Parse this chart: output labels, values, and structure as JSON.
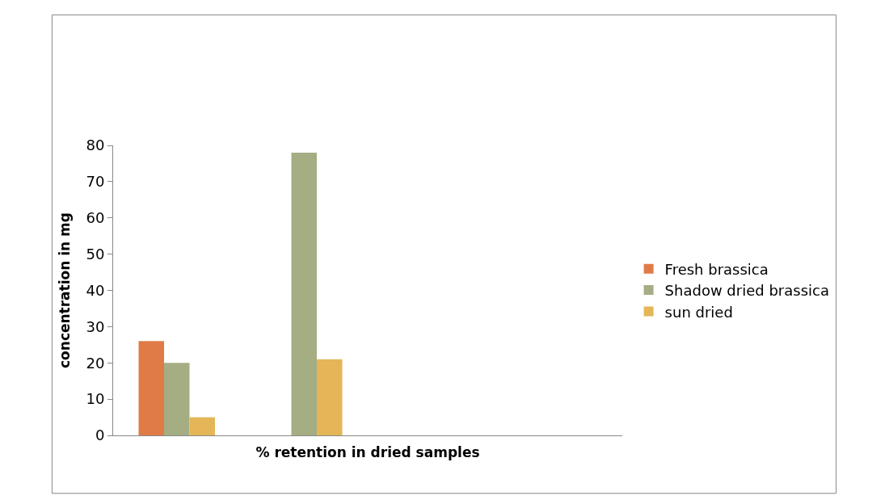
{
  "chart_data": {
    "type": "bar",
    "xlabel": "% retention in dried samples",
    "ylabel": "concentration in mg",
    "categories": [
      null,
      null,
      null,
      null
    ],
    "series": [
      {
        "name": "Fresh brassica",
        "color": "#e07b48",
        "values": [
          26,
          null,
          null,
          null
        ]
      },
      {
        "name": "Shadow dried brassica",
        "color": "#a5ad83",
        "values": [
          20,
          78,
          null,
          null
        ]
      },
      {
        "name": "sun dried",
        "color": "#e4b658",
        "values": [
          5,
          21,
          null,
          null
        ]
      }
    ],
    "ylim": [
      0,
      80
    ],
    "yticks": [
      0,
      10,
      20,
      30,
      40,
      50,
      60,
      70,
      80
    ],
    "legend": "right",
    "tick_labels": "y"
  }
}
